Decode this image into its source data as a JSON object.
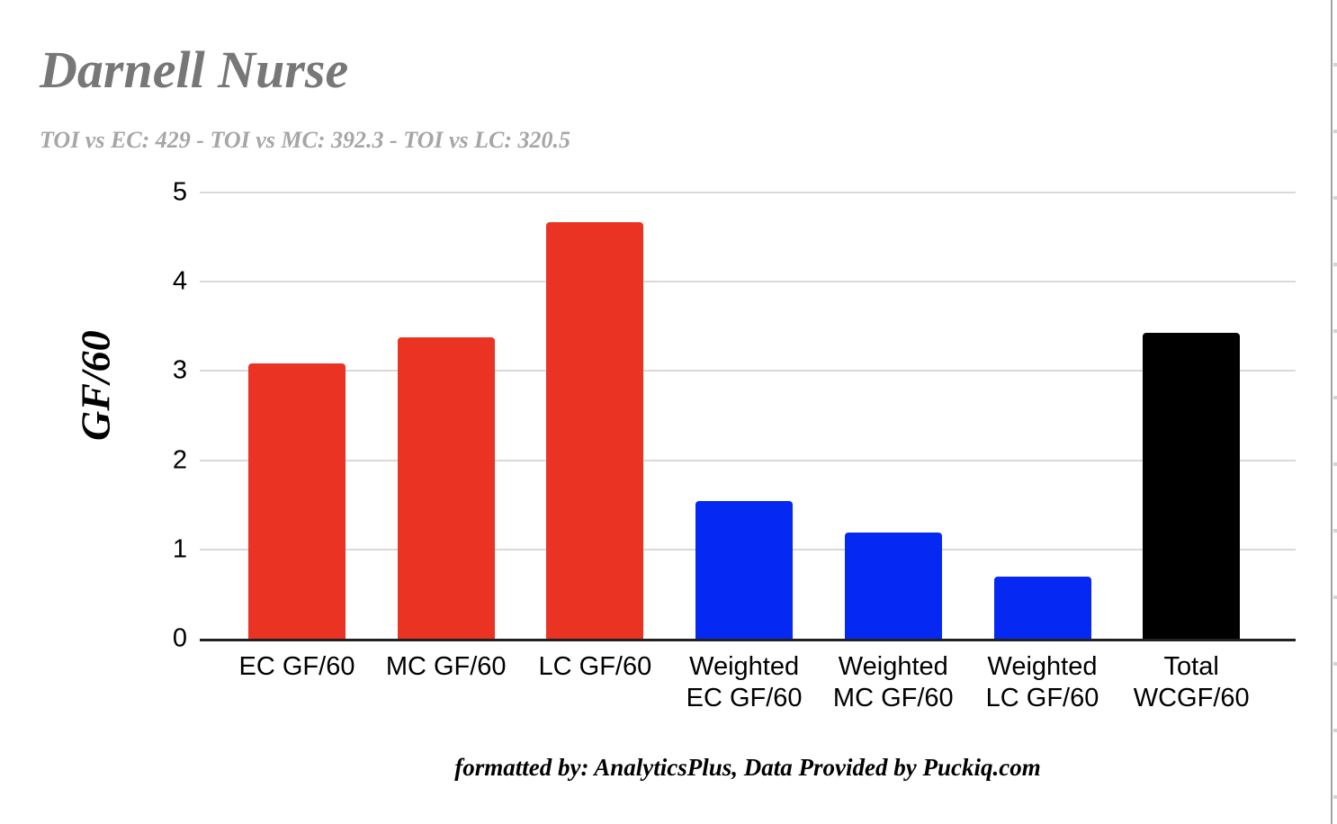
{
  "page": {
    "title": "Darnell Nurse",
    "subtitle": "TOI vs EC: 429 - TOI vs MC: 392.3 - TOI vs LC: 320.5",
    "footer": "formatted by: AnalyticsPlus, Data Provided by Puckiq.com"
  },
  "colors": {
    "bar_red": "#ea3323",
    "bar_blue": "#0528f2",
    "bar_black": "#000000",
    "title_gray": "#777777",
    "subtitle_gray": "#a6a6a6",
    "gridline_gray": "#d9d9d9",
    "axis_dark": "#212121"
  },
  "chart_data": {
    "type": "bar",
    "title": "Darnell Nurse",
    "subtitle": "TOI vs EC: 429 - TOI vs MC: 392.3 - TOI vs LC: 320.5",
    "xlabel": "",
    "ylabel": "GF/60",
    "ylim": [
      0,
      5
    ],
    "yticks": [
      0,
      1,
      2,
      3,
      4,
      5
    ],
    "grid": true,
    "legend": false,
    "categories": [
      "EC GF/60",
      "MC GF/60",
      "LC GF/60",
      "Weighted\nEC GF/60",
      "Weighted\nMC GF/60",
      "Weighted\nLC GF/60",
      "Total\nWCGF/60"
    ],
    "values": [
      3.08,
      3.38,
      4.67,
      1.54,
      1.19,
      0.7,
      3.43
    ],
    "bar_colors": [
      "#ea3323",
      "#ea3323",
      "#ea3323",
      "#0528f2",
      "#0528f2",
      "#0528f2",
      "#000000"
    ],
    "footer": "formatted by: AnalyticsPlus, Data Provided by Puckiq.com"
  }
}
